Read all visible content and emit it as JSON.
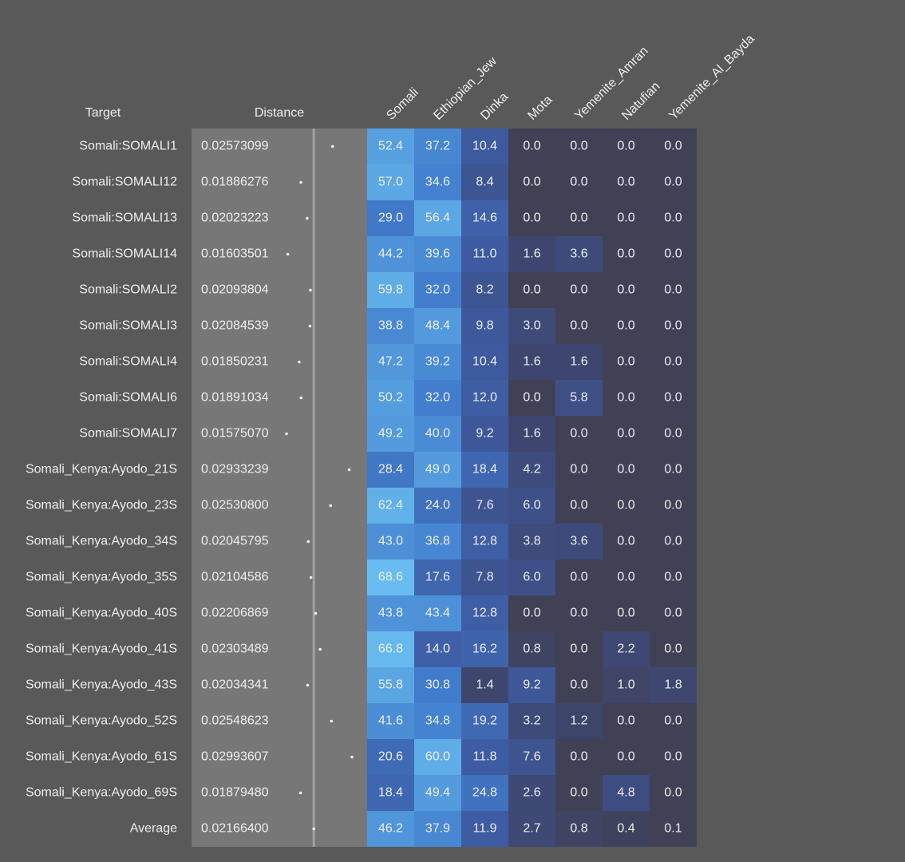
{
  "header": {
    "target": "Target",
    "distance": "Distance",
    "columns": [
      "Somali",
      "Ethiopian_Jew",
      "Dinka",
      "Mota",
      "Yemenite_Amran",
      "Natufian",
      "Yemenite_Al_Bayda"
    ]
  },
  "rows": [
    {
      "target": "Somali:SOMALI1",
      "distance": "0.02573099",
      "values": [
        "52.4",
        "37.2",
        "10.4",
        "0.0",
        "0.0",
        "0.0",
        "0.0"
      ]
    },
    {
      "target": "Somali:SOMALI12",
      "distance": "0.01886276",
      "values": [
        "57.0",
        "34.6",
        "8.4",
        "0.0",
        "0.0",
        "0.0",
        "0.0"
      ]
    },
    {
      "target": "Somali:SOMALI13",
      "distance": "0.02023223",
      "values": [
        "29.0",
        "56.4",
        "14.6",
        "0.0",
        "0.0",
        "0.0",
        "0.0"
      ]
    },
    {
      "target": "Somali:SOMALI14",
      "distance": "0.01603501",
      "values": [
        "44.2",
        "39.6",
        "11.0",
        "1.6",
        "3.6",
        "0.0",
        "0.0"
      ]
    },
    {
      "target": "Somali:SOMALI2",
      "distance": "0.02093804",
      "values": [
        "59.8",
        "32.0",
        "8.2",
        "0.0",
        "0.0",
        "0.0",
        "0.0"
      ]
    },
    {
      "target": "Somali:SOMALI3",
      "distance": "0.02084539",
      "values": [
        "38.8",
        "48.4",
        "9.8",
        "3.0",
        "0.0",
        "0.0",
        "0.0"
      ]
    },
    {
      "target": "Somali:SOMALI4",
      "distance": "0.01850231",
      "values": [
        "47.2",
        "39.2",
        "10.4",
        "1.6",
        "1.6",
        "0.0",
        "0.0"
      ]
    },
    {
      "target": "Somali:SOMALI6",
      "distance": "0.01891034",
      "values": [
        "50.2",
        "32.0",
        "12.0",
        "0.0",
        "5.8",
        "0.0",
        "0.0"
      ]
    },
    {
      "target": "Somali:SOMALI7",
      "distance": "0.01575070",
      "values": [
        "49.2",
        "40.0",
        "9.2",
        "1.6",
        "0.0",
        "0.0",
        "0.0"
      ]
    },
    {
      "target": "Somali_Kenya:Ayodo_21S",
      "distance": "0.02933239",
      "values": [
        "28.4",
        "49.0",
        "18.4",
        "4.2",
        "0.0",
        "0.0",
        "0.0"
      ]
    },
    {
      "target": "Somali_Kenya:Ayodo_23S",
      "distance": "0.02530800",
      "values": [
        "62.4",
        "24.0",
        "7.6",
        "6.0",
        "0.0",
        "0.0",
        "0.0"
      ]
    },
    {
      "target": "Somali_Kenya:Ayodo_34S",
      "distance": "0.02045795",
      "values": [
        "43.0",
        "36.8",
        "12.8",
        "3.8",
        "3.6",
        "0.0",
        "0.0"
      ]
    },
    {
      "target": "Somali_Kenya:Ayodo_35S",
      "distance": "0.02104586",
      "values": [
        "68.6",
        "17.6",
        "7.8",
        "6.0",
        "0.0",
        "0.0",
        "0.0"
      ]
    },
    {
      "target": "Somali_Kenya:Ayodo_40S",
      "distance": "0.02206869",
      "values": [
        "43.8",
        "43.4",
        "12.8",
        "0.0",
        "0.0",
        "0.0",
        "0.0"
      ]
    },
    {
      "target": "Somali_Kenya:Ayodo_41S",
      "distance": "0.02303489",
      "values": [
        "66.8",
        "14.0",
        "16.2",
        "0.8",
        "0.0",
        "2.2",
        "0.0"
      ]
    },
    {
      "target": "Somali_Kenya:Ayodo_43S",
      "distance": "0.02034341",
      "values": [
        "55.8",
        "30.8",
        "1.4",
        "9.2",
        "0.0",
        "1.0",
        "1.8"
      ]
    },
    {
      "target": "Somali_Kenya:Ayodo_52S",
      "distance": "0.02548623",
      "values": [
        "41.6",
        "34.8",
        "19.2",
        "3.2",
        "1.2",
        "0.0",
        "0.0"
      ]
    },
    {
      "target": "Somali_Kenya:Ayodo_61S",
      "distance": "0.02993607",
      "values": [
        "20.6",
        "60.0",
        "11.8",
        "7.6",
        "0.0",
        "0.0",
        "0.0"
      ]
    },
    {
      "target": "Somali_Kenya:Ayodo_69S",
      "distance": "0.01879480",
      "values": [
        "18.4",
        "49.4",
        "24.8",
        "2.6",
        "0.0",
        "4.8",
        "0.0"
      ]
    },
    {
      "target": "Average",
      "distance": "0.02166400",
      "values": [
        "46.2",
        "37.9",
        "11.9",
        "2.7",
        "0.8",
        "0.4",
        "0.1"
      ]
    }
  ]
}
